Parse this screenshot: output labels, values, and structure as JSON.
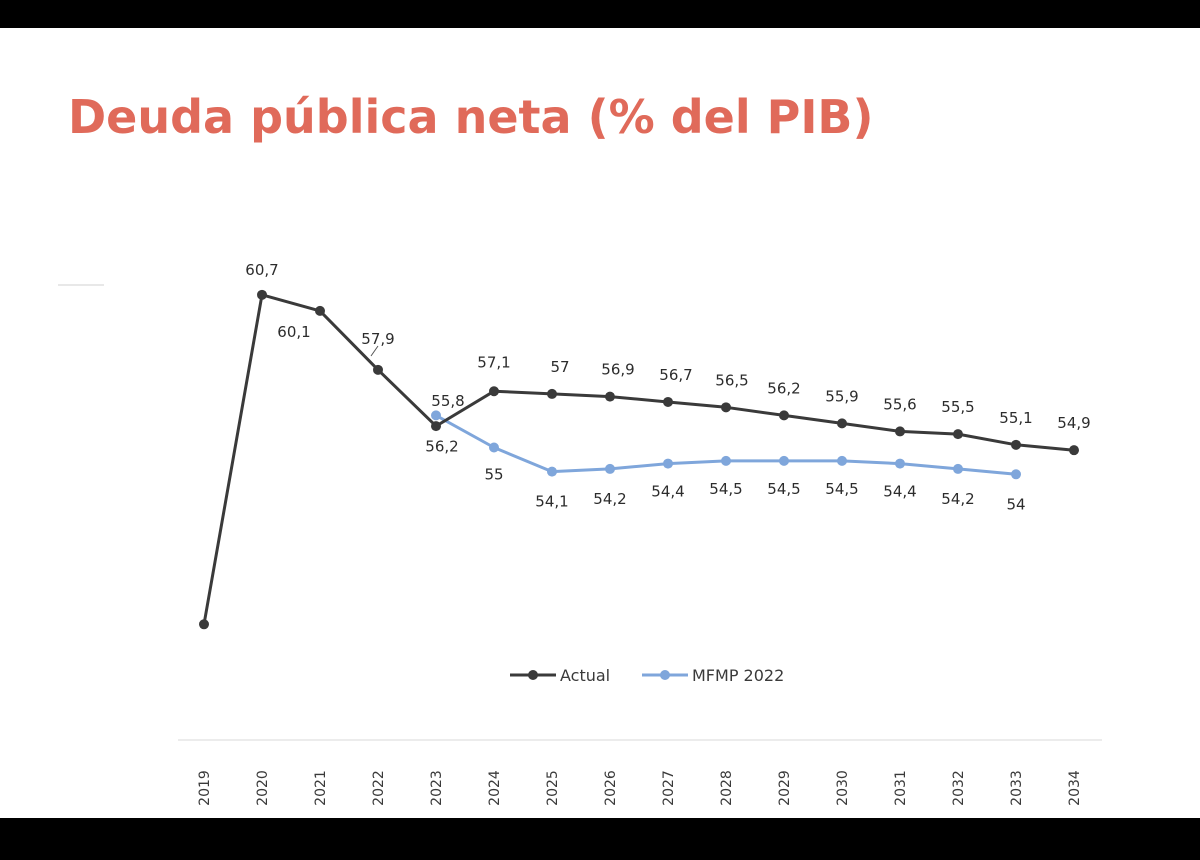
{
  "chart_data": {
    "type": "line",
    "title": "Deuda pública neta (% del PIB)",
    "xlabel": "",
    "ylabel": "",
    "categories": [
      "2019",
      "2020",
      "2021",
      "2022",
      "2023",
      "2024",
      "2025",
      "2026",
      "2027",
      "2028",
      "2029",
      "2030",
      "2031",
      "2032",
      "2033",
      "2034"
    ],
    "ylim": [
      48,
      62
    ],
    "grid": false,
    "legend_position": "bottom-center",
    "series": [
      {
        "name": "Actual",
        "color": "#3a3a3a",
        "values": [
          48.4,
          60.7,
          60.1,
          57.9,
          55.8,
          57.1,
          57,
          56.9,
          56.7,
          56.5,
          56.2,
          55.9,
          55.6,
          55.5,
          55.1,
          54.9
        ],
        "labels": [
          "",
          "60,7",
          "60,1",
          "57,9",
          "55,8",
          "57,1",
          "57",
          "56,9",
          "56,7",
          "56,5",
          "56,2",
          "55,9",
          "55,6",
          "55,5",
          "55,1",
          "54,9"
        ]
      },
      {
        "name": "MFMP 2022",
        "color": "#7fa6db",
        "values": [
          null,
          null,
          null,
          null,
          56.2,
          55,
          54.1,
          54.2,
          54.4,
          54.5,
          54.5,
          54.5,
          54.4,
          54.2,
          54,
          null
        ],
        "labels": [
          "",
          "",
          "",
          "",
          "56,2",
          "55",
          "54,1",
          "54,2",
          "54,4",
          "54,5",
          "54,5",
          "54,5",
          "54,4",
          "54,2",
          "54",
          ""
        ]
      }
    ]
  }
}
